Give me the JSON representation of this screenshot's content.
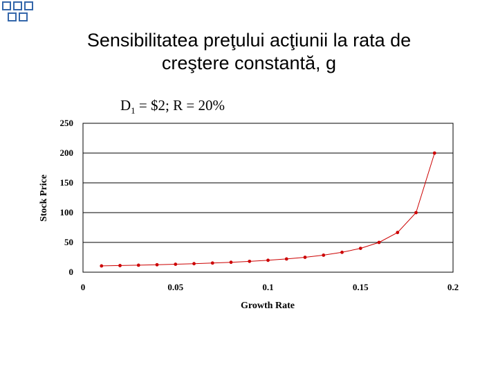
{
  "slide": {
    "title_line1": "Sensibilitatea preţului acţiunii la rata de",
    "title_line2": "creştere constantă, g",
    "subtitle_prefix": "D",
    "subtitle_sub": "1",
    "subtitle_rest": " = $2; R = 20%",
    "decoration_color": "#3366aa"
  },
  "chart_data": {
    "type": "scatter",
    "xlabel": "Growth Rate",
    "ylabel": "Stock Price",
    "xlim": [
      0,
      0.2
    ],
    "ylim": [
      0,
      250
    ],
    "x_ticks": [
      "0",
      "0.05",
      "0.1",
      "0.15",
      "0.2"
    ],
    "y_ticks": [
      "0",
      "50",
      "100",
      "150",
      "200",
      "250"
    ],
    "grid": "horizontal",
    "series_color": "#cc0000",
    "x": [
      0.01,
      0.02,
      0.03,
      0.04,
      0.05,
      0.06,
      0.07,
      0.08,
      0.09,
      0.1,
      0.11,
      0.12,
      0.13,
      0.14,
      0.15,
      0.16,
      0.17,
      0.18,
      0.19
    ],
    "y": [
      10.53,
      11.11,
      11.76,
      12.5,
      13.33,
      14.29,
      15.38,
      16.67,
      18.18,
      20.0,
      22.22,
      25.0,
      28.57,
      33.33,
      40.0,
      50.0,
      66.67,
      100.0,
      200.0
    ]
  }
}
